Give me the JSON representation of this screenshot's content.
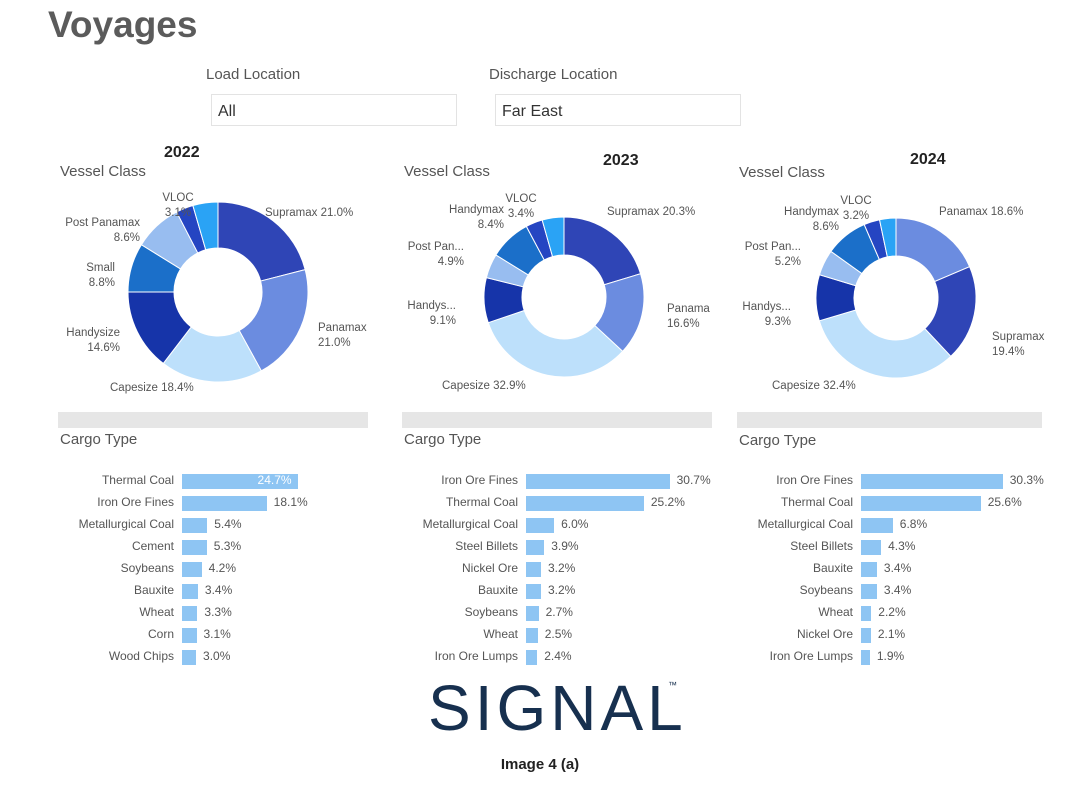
{
  "page_title": "Voyages",
  "filters": [
    {
      "label": "Load Location",
      "value": "All"
    },
    {
      "label": "Discharge Location",
      "value": "Far East"
    }
  ],
  "chart_data": [
    {
      "type": "pie",
      "year": "2022",
      "title": "Vessel Class",
      "slices": [
        {
          "label": "Supramax",
          "value": 21.0,
          "color": "#2f45b6"
        },
        {
          "label": "Panamax",
          "value": 21.0,
          "color": "#6b8ce0"
        },
        {
          "label": "Capesize",
          "value": 18.4,
          "color": "#bde0fb"
        },
        {
          "label": "Handysize",
          "value": 14.6,
          "color": "#1634a9"
        },
        {
          "label": "Small",
          "value": 8.8,
          "color": "#1b6fc9"
        },
        {
          "label": "Post Panamax",
          "value": 8.6,
          "color": "#98bdf0"
        },
        {
          "label": "VLOC",
          "value": 3.1,
          "color": "#2545c2"
        },
        {
          "label": "",
          "value": 4.5,
          "color": "#2aa3f5"
        }
      ]
    },
    {
      "type": "pie",
      "year": "2023",
      "title": "Vessel Class",
      "slices": [
        {
          "label": "Supramax",
          "value": 20.3,
          "color": "#2f45b6"
        },
        {
          "label": "Panama",
          "value": 16.6,
          "color": "#6b8ce0"
        },
        {
          "label": "Capesize",
          "value": 32.9,
          "color": "#bde0fb"
        },
        {
          "label": "Handys...",
          "value": 9.1,
          "color": "#1634a9"
        },
        {
          "label": "Post Pan...",
          "value": 4.9,
          "color": "#98bdf0"
        },
        {
          "label": "Handymax",
          "value": 8.4,
          "color": "#1b6fc9"
        },
        {
          "label": "VLOC",
          "value": 3.4,
          "color": "#2545c2"
        },
        {
          "label": "",
          "value": 4.4,
          "color": "#2aa3f5"
        }
      ]
    },
    {
      "type": "pie",
      "year": "2024",
      "title": "Vessel Class",
      "slices": [
        {
          "label": "Panamax",
          "value": 18.6,
          "color": "#6b8ce0"
        },
        {
          "label": "Supramax",
          "value": 19.4,
          "color": "#2f45b6"
        },
        {
          "label": "Capesize",
          "value": 32.4,
          "color": "#bde0fb"
        },
        {
          "label": "Handys...",
          "value": 9.3,
          "color": "#1634a9"
        },
        {
          "label": "Post Pan...",
          "value": 5.2,
          "color": "#98bdf0"
        },
        {
          "label": "Handymax",
          "value": 8.6,
          "color": "#1b6fc9"
        },
        {
          "label": "VLOC",
          "value": 3.2,
          "color": "#2545c2"
        },
        {
          "label": "",
          "value": 3.3,
          "color": "#2aa3f5"
        }
      ]
    },
    {
      "type": "bar",
      "year": "2022",
      "title": "Cargo Type",
      "xlim": [
        0,
        31
      ],
      "categories": [
        "Thermal Coal",
        "Iron Ore Fines",
        "Metallurgical Coal",
        "Cement",
        "Soybeans",
        "Bauxite",
        "Wheat",
        "Corn",
        "Wood Chips"
      ],
      "values": [
        24.7,
        18.1,
        5.4,
        5.3,
        4.2,
        3.4,
        3.3,
        3.1,
        3.0
      ]
    },
    {
      "type": "bar",
      "year": "2023",
      "title": "Cargo Type",
      "xlim": [
        0,
        31
      ],
      "categories": [
        "Iron Ore Fines",
        "Thermal Coal",
        "Metallurgical Coal",
        "Steel Billets",
        "Nickel Ore",
        "Bauxite",
        "Soybeans",
        "Wheat",
        "Iron Ore Lumps"
      ],
      "values": [
        30.7,
        25.2,
        6.0,
        3.9,
        3.2,
        3.2,
        2.7,
        2.5,
        2.4
      ]
    },
    {
      "type": "bar",
      "year": "2024",
      "title": "Cargo Type",
      "xlim": [
        0,
        31
      ],
      "categories": [
        "Iron Ore Fines",
        "Thermal Coal",
        "Metallurgical Coal",
        "Steel Billets",
        "Bauxite",
        "Soybeans",
        "Wheat",
        "Nickel Ore",
        "Iron Ore Lumps"
      ],
      "values": [
        30.3,
        25.6,
        6.8,
        4.3,
        3.4,
        3.4,
        2.2,
        2.1,
        1.9
      ]
    }
  ],
  "logo": {
    "text": "SIGNAL",
    "trademark": "™"
  },
  "caption": "Image 4 (a)"
}
